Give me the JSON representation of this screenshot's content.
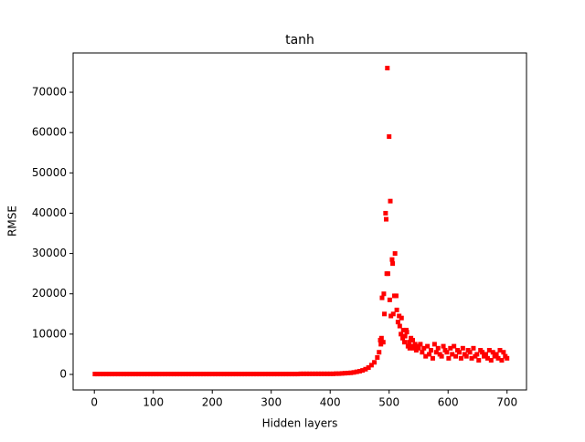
{
  "chart_data": {
    "type": "scatter",
    "title": "tanh",
    "x_label": "Hidden layers",
    "y_label": "RMSE",
    "color": "#ff0000",
    "x": [
      1,
      5,
      10,
      15,
      20,
      25,
      30,
      35,
      40,
      45,
      50,
      55,
      60,
      65,
      70,
      75,
      80,
      85,
      90,
      95,
      100,
      105,
      110,
      115,
      120,
      125,
      130,
      135,
      140,
      145,
      150,
      155,
      160,
      165,
      170,
      175,
      180,
      185,
      190,
      195,
      200,
      205,
      210,
      215,
      220,
      225,
      230,
      235,
      240,
      245,
      250,
      255,
      260,
      265,
      270,
      275,
      280,
      285,
      290,
      295,
      300,
      305,
      310,
      315,
      320,
      325,
      330,
      335,
      340,
      345,
      350,
      355,
      360,
      365,
      370,
      375,
      380,
      385,
      390,
      395,
      400,
      405,
      410,
      415,
      420,
      425,
      430,
      435,
      440,
      445,
      450,
      455,
      460,
      465,
      470,
      475,
      480,
      483,
      485,
      486,
      487,
      488,
      490,
      491,
      492,
      494,
      495,
      496,
      497,
      498,
      500,
      501,
      502,
      503,
      505,
      506,
      507,
      509,
      510,
      512,
      513,
      515,
      517,
      518,
      520,
      521,
      523,
      524,
      526,
      527,
      529,
      530,
      532,
      534,
      535,
      537,
      538,
      540,
      542,
      544,
      546,
      548,
      550,
      553,
      556,
      559,
      562,
      565,
      568,
      571,
      574,
      577,
      580,
      583,
      586,
      589,
      592,
      595,
      598,
      601,
      604,
      607,
      610,
      613,
      616,
      619,
      622,
      625,
      628,
      631,
      634,
      637,
      640,
      643,
      646,
      649,
      652,
      655,
      658,
      661,
      664,
      667,
      670,
      673,
      676,
      679,
      682,
      685,
      688,
      691,
      694,
      697,
      700
    ],
    "values": [
      100,
      100,
      100,
      100,
      100,
      100,
      100,
      100,
      100,
      100,
      100,
      100,
      100,
      100,
      100,
      100,
      100,
      100,
      100,
      100,
      100,
      100,
      100,
      100,
      100,
      100,
      100,
      100,
      100,
      100,
      100,
      100,
      100,
      100,
      100,
      100,
      100,
      100,
      100,
      100,
      100,
      100,
      100,
      100,
      100,
      100,
      100,
      100,
      100,
      100,
      100,
      100,
      100,
      100,
      100,
      100,
      100,
      100,
      100,
      100,
      100,
      100,
      100,
      100,
      100,
      100,
      100,
      100,
      100,
      100,
      150,
      150,
      150,
      150,
      150,
      150,
      150,
      150,
      150,
      150,
      150,
      150,
      200,
      200,
      250,
      300,
      350,
      400,
      500,
      650,
      800,
      1000,
      1300,
      1700,
      2300,
      3000,
      4200,
      5500,
      8500,
      7500,
      9000,
      19000,
      8000,
      20000,
      15000,
      40000,
      38500,
      25000,
      76000,
      25000,
      59000,
      18500,
      43000,
      14500,
      28500,
      27500,
      15000,
      19500,
      30000,
      19500,
      16000,
      13000,
      14500,
      12000,
      10000,
      14000,
      9000,
      11000,
      8000,
      9500,
      11000,
      10500,
      7000,
      8000,
      6500,
      9000,
      7000,
      8500,
      6500,
      7500,
      6000,
      7000,
      6500,
      7500,
      5500,
      6500,
      4500,
      7000,
      5000,
      6000,
      4000,
      7500,
      5500,
      6500,
      5000,
      4500,
      7000,
      6000,
      5500,
      4000,
      6500,
      5000,
      7000,
      4500,
      6000,
      5500,
      4000,
      6500,
      5000,
      4500,
      6000,
      5500,
      4000,
      6500,
      4500,
      5000,
      3500,
      6000,
      5500,
      4500,
      5000,
      4000,
      6000,
      3500,
      5500,
      4500,
      5000,
      4000,
      6000,
      3500,
      5500,
      4500,
      4000
    ],
    "xlim": [
      -36,
      733
    ],
    "ylim": [
      -3850,
      79750
    ],
    "xticks": [
      0,
      100,
      200,
      300,
      400,
      500,
      600,
      700
    ],
    "yticks": [
      0,
      10000,
      20000,
      30000,
      40000,
      50000,
      60000,
      70000
    ]
  }
}
